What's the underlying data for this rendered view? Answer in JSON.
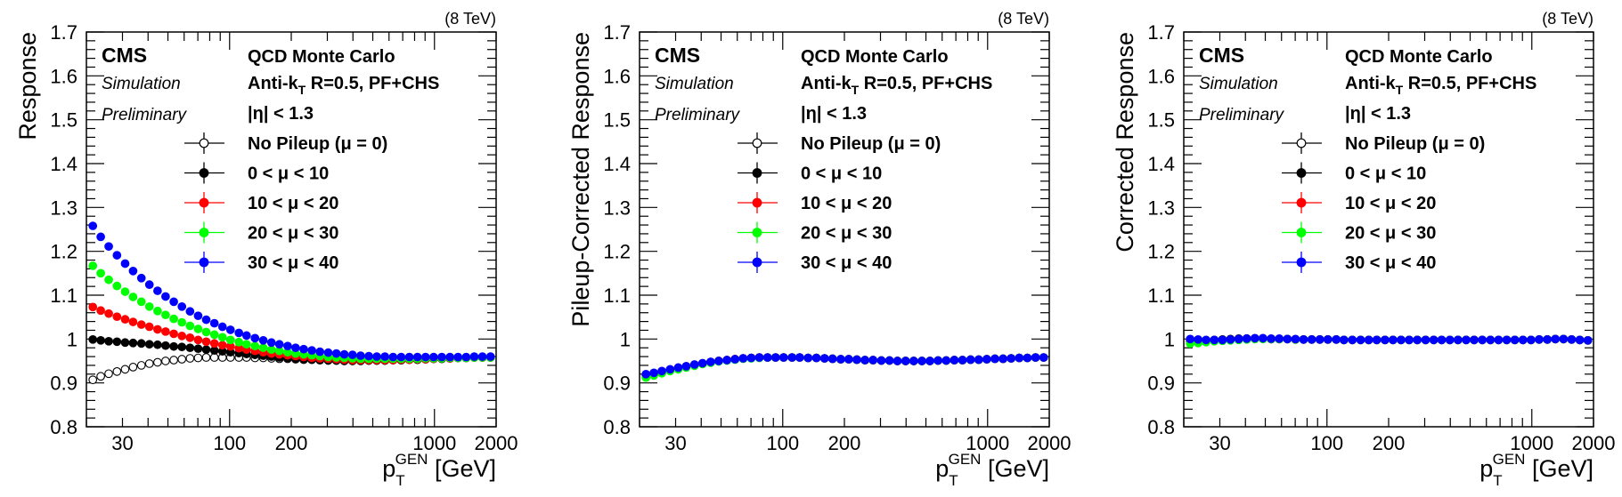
{
  "energy_label": "(8 TeV)",
  "cms_label": "CMS",
  "simulation_label": "Simulation",
  "preliminary_label": "Preliminary",
  "info_lines": [
    "QCD Monte Carlo",
    "Anti-kT R=0.5, PF+CHS",
    "|η| < 1.3"
  ],
  "colors": {
    "no_pileup": "#000000",
    "mu_0_10": "#000000",
    "mu_10_20": "#ff0000",
    "mu_20_30": "#00ff00",
    "mu_30_40": "#0000ff"
  },
  "chart_data": [
    {
      "type": "scatter",
      "ylabel": "Response",
      "xlabel": "pTGEN [GeV]",
      "xlim": [
        20,
        2000
      ],
      "ylim": [
        0.8,
        1.7
      ],
      "xscale": "log",
      "x_ticks": [
        30,
        100,
        200,
        1000,
        2000
      ],
      "y_ticks": [
        0.8,
        0.9,
        1,
        1.1,
        1.2,
        1.3,
        1.4,
        1.5,
        1.6,
        1.7
      ],
      "x": [
        21.5,
        23.5,
        25.7,
        28.2,
        30.9,
        33.8,
        37.1,
        40.6,
        44.5,
        48.7,
        53.4,
        58.5,
        64.1,
        70.2,
        76.9,
        84.3,
        92.3,
        101,
        111,
        121,
        133,
        146,
        160,
        175,
        192,
        210,
        230,
        252,
        276,
        303,
        332,
        363,
        398,
        436,
        478,
        523,
        573,
        628,
        688,
        754,
        826,
        905,
        991,
        1086,
        1190,
        1303,
        1428,
        1564,
        1714,
        1878
      ],
      "series": [
        {
          "name": "No Pileup (μ = 0)",
          "open": true,
          "values": [
            0.907,
            0.915,
            0.921,
            0.926,
            0.931,
            0.936,
            0.94,
            0.944,
            0.947,
            0.95,
            0.952,
            0.954,
            0.956,
            0.957,
            0.958,
            0.958,
            0.958,
            0.958,
            0.958,
            0.958,
            0.957,
            0.957,
            0.956,
            0.955,
            0.955,
            0.954,
            0.953,
            0.953,
            0.952,
            0.952,
            0.951,
            0.951,
            0.951,
            0.951,
            0.951,
            0.951,
            0.951,
            0.952,
            0.952,
            0.953,
            0.953,
            0.954,
            0.955,
            0.955,
            0.956,
            0.957,
            0.957,
            0.958,
            0.958,
            0.958
          ]
        },
        {
          "name": "0 < μ < 10",
          "values": [
            0.999,
            0.997,
            0.995,
            0.994,
            0.992,
            0.991,
            0.99,
            0.988,
            0.987,
            0.985,
            0.983,
            0.982,
            0.98,
            0.978,
            0.976,
            0.974,
            0.972,
            0.97,
            0.968,
            0.966,
            0.964,
            0.962,
            0.96,
            0.958,
            0.957,
            0.955,
            0.954,
            0.953,
            0.952,
            0.951,
            0.951,
            0.95,
            0.95,
            0.95,
            0.951,
            0.951,
            0.951,
            0.952,
            0.952,
            0.953,
            0.953,
            0.954,
            0.955,
            0.955,
            0.956,
            0.957,
            0.957,
            0.958,
            0.958,
            0.958
          ]
        },
        {
          "name": "10 < μ < 20",
          "values": [
            1.073,
            1.065,
            1.058,
            1.051,
            1.045,
            1.039,
            1.033,
            1.028,
            1.022,
            1.017,
            1.012,
            1.007,
            1.003,
            0.998,
            0.994,
            0.99,
            0.986,
            0.983,
            0.979,
            0.976,
            0.973,
            0.97,
            0.967,
            0.965,
            0.963,
            0.961,
            0.959,
            0.957,
            0.956,
            0.955,
            0.954,
            0.953,
            0.952,
            0.952,
            0.952,
            0.952,
            0.952,
            0.952,
            0.953,
            0.953,
            0.954,
            0.954,
            0.955,
            0.956,
            0.956,
            0.957,
            0.957,
            0.958,
            0.958,
            0.958
          ]
        },
        {
          "name": "20 < μ < 30",
          "values": [
            1.167,
            1.15,
            1.135,
            1.121,
            1.108,
            1.096,
            1.085,
            1.074,
            1.064,
            1.055,
            1.046,
            1.038,
            1.03,
            1.023,
            1.016,
            1.01,
            1.004,
            0.998,
            0.993,
            0.988,
            0.984,
            0.98,
            0.976,
            0.973,
            0.97,
            0.967,
            0.965,
            0.963,
            0.961,
            0.959,
            0.958,
            0.957,
            0.956,
            0.955,
            0.955,
            0.955,
            0.955,
            0.955,
            0.955,
            0.955,
            0.955,
            0.956,
            0.956,
            0.956,
            0.957,
            0.957,
            0.957,
            0.958,
            0.958,
            0.958
          ]
        },
        {
          "name": "30 < μ < 40",
          "values": [
            1.258,
            1.233,
            1.211,
            1.191,
            1.172,
            1.155,
            1.139,
            1.124,
            1.11,
            1.097,
            1.085,
            1.074,
            1.063,
            1.053,
            1.044,
            1.036,
            1.028,
            1.021,
            1.014,
            1.008,
            1.002,
            0.997,
            0.992,
            0.988,
            0.984,
            0.98,
            0.977,
            0.974,
            0.971,
            0.969,
            0.967,
            0.965,
            0.964,
            0.962,
            0.961,
            0.96,
            0.96,
            0.959,
            0.959,
            0.959,
            0.959,
            0.959,
            0.959,
            0.959,
            0.959,
            0.959,
            0.959,
            0.96,
            0.96,
            0.96
          ]
        }
      ]
    },
    {
      "type": "scatter",
      "ylabel": "Pileup-Corrected Response",
      "xlabel": "pTGEN [GeV]",
      "xlim": [
        20,
        2000
      ],
      "ylim": [
        0.8,
        1.7
      ],
      "xscale": "log",
      "x_ticks": [
        30,
        100,
        200,
        1000,
        2000
      ],
      "y_ticks": [
        0.8,
        0.9,
        1,
        1.1,
        1.2,
        1.3,
        1.4,
        1.5,
        1.6,
        1.7
      ],
      "x": [
        21.5,
        23.5,
        25.7,
        28.2,
        30.9,
        33.8,
        37.1,
        40.6,
        44.5,
        48.7,
        53.4,
        58.5,
        64.1,
        70.2,
        76.9,
        84.3,
        92.3,
        101,
        111,
        121,
        133,
        146,
        160,
        175,
        192,
        210,
        230,
        252,
        276,
        303,
        332,
        363,
        398,
        436,
        478,
        523,
        573,
        628,
        688,
        754,
        826,
        905,
        991,
        1086,
        1190,
        1303,
        1428,
        1564,
        1714,
        1878
      ],
      "series": [
        {
          "name": "No Pileup (μ = 0)",
          "open": true,
          "values": [
            0.916,
            0.92,
            0.925,
            0.929,
            0.933,
            0.937,
            0.941,
            0.944,
            0.947,
            0.95,
            0.952,
            0.954,
            0.956,
            0.957,
            0.958,
            0.958,
            0.958,
            0.958,
            0.958,
            0.958,
            0.957,
            0.957,
            0.956,
            0.955,
            0.954,
            0.954,
            0.953,
            0.952,
            0.952,
            0.951,
            0.951,
            0.95,
            0.95,
            0.95,
            0.95,
            0.95,
            0.951,
            0.951,
            0.952,
            0.952,
            0.953,
            0.953,
            0.954,
            0.955,
            0.955,
            0.956,
            0.957,
            0.957,
            0.958,
            0.958
          ]
        },
        {
          "name": "0 < μ < 10",
          "values": [
            0.918,
            0.922,
            0.926,
            0.93,
            0.934,
            0.938,
            0.941,
            0.944,
            0.947,
            0.95,
            0.952,
            0.954,
            0.956,
            0.957,
            0.958,
            0.958,
            0.958,
            0.958,
            0.958,
            0.958,
            0.957,
            0.957,
            0.956,
            0.955,
            0.954,
            0.954,
            0.953,
            0.952,
            0.952,
            0.951,
            0.951,
            0.95,
            0.95,
            0.95,
            0.95,
            0.95,
            0.951,
            0.951,
            0.952,
            0.952,
            0.953,
            0.953,
            0.954,
            0.955,
            0.955,
            0.956,
            0.957,
            0.957,
            0.958,
            0.958
          ]
        },
        {
          "name": "10 < μ < 20",
          "values": [
            0.917,
            0.921,
            0.925,
            0.929,
            0.933,
            0.937,
            0.941,
            0.944,
            0.947,
            0.95,
            0.952,
            0.954,
            0.956,
            0.957,
            0.958,
            0.958,
            0.958,
            0.958,
            0.958,
            0.958,
            0.957,
            0.957,
            0.956,
            0.955,
            0.954,
            0.954,
            0.953,
            0.952,
            0.952,
            0.951,
            0.951,
            0.95,
            0.95,
            0.95,
            0.95,
            0.95,
            0.951,
            0.951,
            0.952,
            0.952,
            0.953,
            0.953,
            0.954,
            0.955,
            0.955,
            0.956,
            0.957,
            0.957,
            0.958,
            0.958
          ]
        },
        {
          "name": "20 < μ < 30",
          "values": [
            0.912,
            0.917,
            0.922,
            0.927,
            0.931,
            0.935,
            0.939,
            0.943,
            0.946,
            0.949,
            0.951,
            0.953,
            0.955,
            0.956,
            0.957,
            0.958,
            0.958,
            0.958,
            0.958,
            0.958,
            0.957,
            0.957,
            0.956,
            0.955,
            0.954,
            0.954,
            0.953,
            0.952,
            0.952,
            0.951,
            0.951,
            0.95,
            0.95,
            0.95,
            0.95,
            0.95,
            0.951,
            0.951,
            0.952,
            0.952,
            0.953,
            0.953,
            0.954,
            0.955,
            0.955,
            0.956,
            0.957,
            0.957,
            0.958,
            0.958
          ]
        },
        {
          "name": "30 < μ < 40",
          "values": [
            0.92,
            0.923,
            0.927,
            0.931,
            0.935,
            0.938,
            0.942,
            0.945,
            0.948,
            0.95,
            0.952,
            0.954,
            0.956,
            0.957,
            0.958,
            0.958,
            0.958,
            0.958,
            0.958,
            0.958,
            0.957,
            0.957,
            0.956,
            0.955,
            0.954,
            0.954,
            0.953,
            0.952,
            0.952,
            0.951,
            0.951,
            0.95,
            0.95,
            0.95,
            0.95,
            0.95,
            0.951,
            0.951,
            0.952,
            0.952,
            0.953,
            0.953,
            0.954,
            0.955,
            0.955,
            0.956,
            0.957,
            0.957,
            0.958,
            0.958
          ]
        }
      ]
    },
    {
      "type": "scatter",
      "ylabel": "Corrected Response",
      "xlabel": "pTGEN [GeV]",
      "xlim": [
        20,
        2000
      ],
      "ylim": [
        0.8,
        1.7
      ],
      "xscale": "log",
      "x_ticks": [
        30,
        100,
        200,
        1000,
        2000
      ],
      "y_ticks": [
        0.8,
        0.9,
        1,
        1.1,
        1.2,
        1.3,
        1.4,
        1.5,
        1.6,
        1.7
      ],
      "x": [
        21.5,
        23.5,
        25.7,
        28.2,
        30.9,
        33.8,
        37.1,
        40.6,
        44.5,
        48.7,
        53.4,
        58.5,
        64.1,
        70.2,
        76.9,
        84.3,
        92.3,
        101,
        111,
        121,
        133,
        146,
        160,
        175,
        192,
        210,
        230,
        252,
        276,
        303,
        332,
        363,
        398,
        436,
        478,
        523,
        573,
        628,
        688,
        754,
        826,
        905,
        991,
        1086,
        1190,
        1303,
        1428,
        1564,
        1714,
        1878
      ],
      "series": [
        {
          "name": "No Pileup (μ = 0)",
          "open": true,
          "values": [
            0.996,
            0.996,
            0.997,
            0.998,
            0.999,
            1.0,
            1.001,
            1.001,
            1.001,
            1.001,
            1.0,
            1.0,
            1.0,
            0.999,
            0.999,
            0.999,
            0.999,
            0.999,
            0.999,
            0.998,
            0.998,
            0.998,
            0.998,
            0.998,
            0.998,
            0.998,
            0.998,
            0.998,
            0.998,
            0.998,
            0.998,
            0.998,
            0.998,
            0.998,
            0.998,
            0.998,
            0.998,
            0.998,
            0.998,
            0.998,
            0.998,
            0.998,
            0.998,
            0.999,
            0.999,
            1.0,
            1.0,
            0.999,
            0.998,
            0.997
          ]
        },
        {
          "name": "0 < μ < 10",
          "values": [
            0.995,
            0.995,
            0.996,
            0.997,
            0.998,
            0.999,
            1.0,
            1.001,
            1.001,
            1.001,
            1.0,
            1.0,
            1.0,
            0.999,
            0.999,
            0.999,
            0.999,
            0.999,
            0.999,
            0.998,
            0.998,
            0.998,
            0.998,
            0.998,
            0.998,
            0.998,
            0.998,
            0.998,
            0.998,
            0.998,
            0.998,
            0.998,
            0.998,
            0.998,
            0.998,
            0.998,
            0.998,
            0.998,
            0.998,
            0.998,
            0.998,
            0.998,
            0.998,
            0.999,
            0.999,
            1.0,
            1.0,
            0.999,
            0.998,
            0.997
          ]
        },
        {
          "name": "10 < μ < 20",
          "values": [
            0.994,
            0.994,
            0.995,
            0.996,
            0.997,
            0.998,
            0.999,
            1.0,
            1.001,
            1.001,
            1.0,
            1.0,
            1.0,
            0.999,
            0.999,
            0.999,
            0.999,
            0.999,
            0.999,
            0.998,
            0.998,
            0.998,
            0.998,
            0.998,
            0.998,
            0.998,
            0.998,
            0.998,
            0.998,
            0.998,
            0.998,
            0.998,
            0.998,
            0.998,
            0.998,
            0.998,
            0.998,
            0.998,
            0.998,
            0.998,
            0.998,
            0.998,
            0.998,
            0.999,
            0.999,
            1.0,
            1.0,
            0.999,
            0.998,
            0.997
          ]
        },
        {
          "name": "20 < μ < 30",
          "values": [
            0.99,
            0.991,
            0.993,
            0.995,
            0.996,
            0.997,
            0.998,
            0.999,
            1.0,
            1.0,
            1.0,
            1.0,
            1.0,
            0.999,
            0.999,
            0.999,
            0.999,
            0.999,
            0.999,
            0.998,
            0.998,
            0.998,
            0.998,
            0.998,
            0.998,
            0.998,
            0.998,
            0.998,
            0.998,
            0.998,
            0.998,
            0.998,
            0.998,
            0.998,
            0.998,
            0.998,
            0.998,
            0.998,
            0.998,
            0.998,
            0.998,
            0.998,
            0.998,
            0.999,
            0.999,
            1.0,
            1.0,
            0.999,
            0.998,
            0.997
          ]
        },
        {
          "name": "30 < μ < 40",
          "values": [
            1.0,
            0.999,
            0.998,
            0.998,
            0.998,
            0.999,
            1.0,
            1.001,
            1.002,
            1.002,
            1.001,
            1.001,
            1.0,
            1.0,
            0.999,
            0.999,
            0.999,
            0.999,
            0.999,
            0.998,
            0.998,
            0.998,
            0.998,
            0.998,
            0.998,
            0.998,
            0.998,
            0.998,
            0.998,
            0.998,
            0.998,
            0.998,
            0.998,
            0.998,
            0.998,
            0.998,
            0.998,
            0.998,
            0.998,
            0.998,
            0.998,
            0.998,
            0.998,
            0.999,
            0.999,
            1.0,
            1.0,
            0.999,
            0.998,
            0.997
          ]
        }
      ]
    }
  ]
}
